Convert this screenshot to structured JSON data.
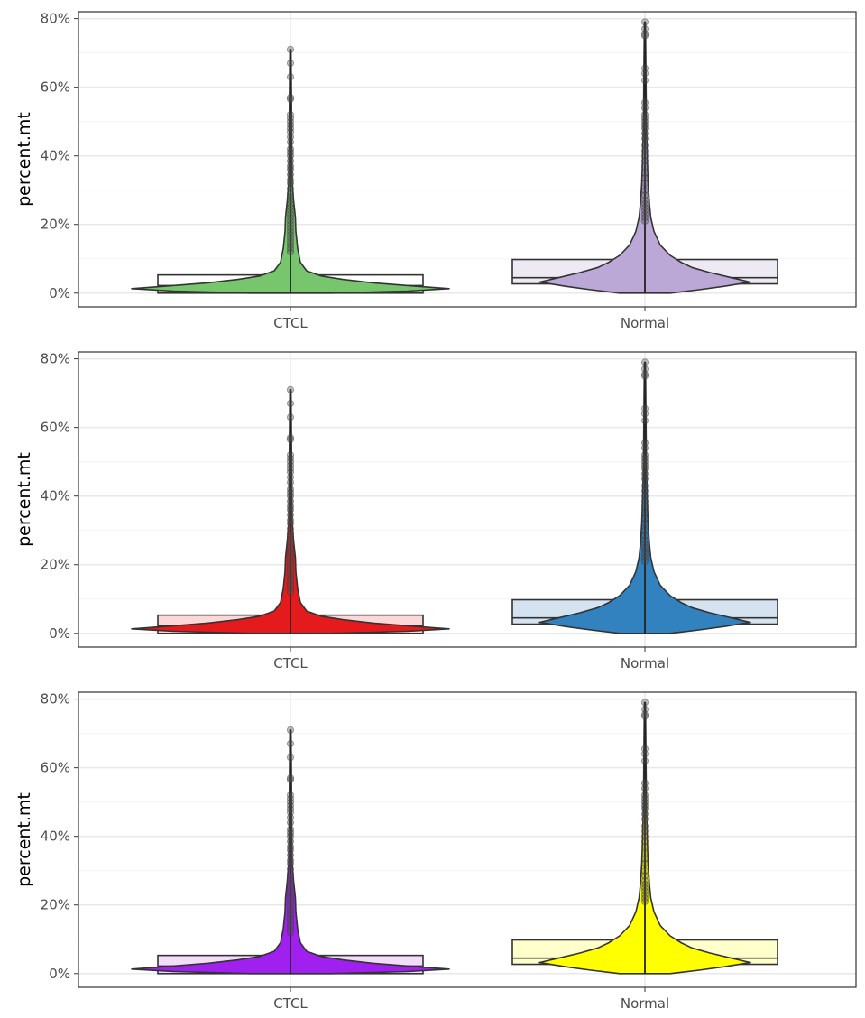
{
  "chart_data": [
    {
      "type": "violin",
      "ylabel": "percent.mt",
      "categories": [
        "CTCL",
        "Normal"
      ],
      "y_ticks": [
        "0%",
        "20%",
        "40%",
        "60%",
        "80%"
      ],
      "ylim": [
        -0.04,
        0.82
      ],
      "grid": true,
      "fills": [
        "#77C66E",
        "#BCA8D6"
      ],
      "box_fills": [
        "#FFFFFF",
        "#EDEAF3"
      ],
      "series": [
        {
          "name": "CTCL",
          "q1": 0.0,
          "median": 0.022,
          "q3": 0.053,
          "max": 0.71
        },
        {
          "name": "Normal",
          "q1": 0.027,
          "median": 0.045,
          "q3": 0.098,
          "max": 0.79
        }
      ]
    },
    {
      "type": "violin",
      "ylabel": "percent.mt",
      "categories": [
        "CTCL",
        "Normal"
      ],
      "y_ticks": [
        "0%",
        "20%",
        "40%",
        "60%",
        "80%"
      ],
      "ylim": [
        -0.04,
        0.82
      ],
      "grid": true,
      "fills": [
        "#E41A1C",
        "#3282BF"
      ],
      "box_fills": [
        "#FBD8D8",
        "#D4E3EF"
      ],
      "series": [
        {
          "name": "CTCL",
          "q1": 0.0,
          "median": 0.022,
          "q3": 0.053,
          "max": 0.71
        },
        {
          "name": "Normal",
          "q1": 0.027,
          "median": 0.045,
          "q3": 0.098,
          "max": 0.79
        }
      ]
    },
    {
      "type": "violin",
      "ylabel": "percent.mt",
      "categories": [
        "CTCL",
        "Normal"
      ],
      "y_ticks": [
        "0%",
        "20%",
        "40%",
        "60%",
        "80%"
      ],
      "ylim": [
        -0.04,
        0.82
      ],
      "grid": true,
      "fills": [
        "#A020F0",
        "#FFFF00"
      ],
      "box_fills": [
        "#F3DCF7",
        "#FFFFCC"
      ],
      "series": [
        {
          "name": "CTCL",
          "q1": 0.0,
          "median": 0.022,
          "q3": 0.053,
          "max": 0.71
        },
        {
          "name": "Normal",
          "q1": 0.027,
          "median": 0.045,
          "q3": 0.098,
          "max": 0.79
        }
      ]
    }
  ]
}
